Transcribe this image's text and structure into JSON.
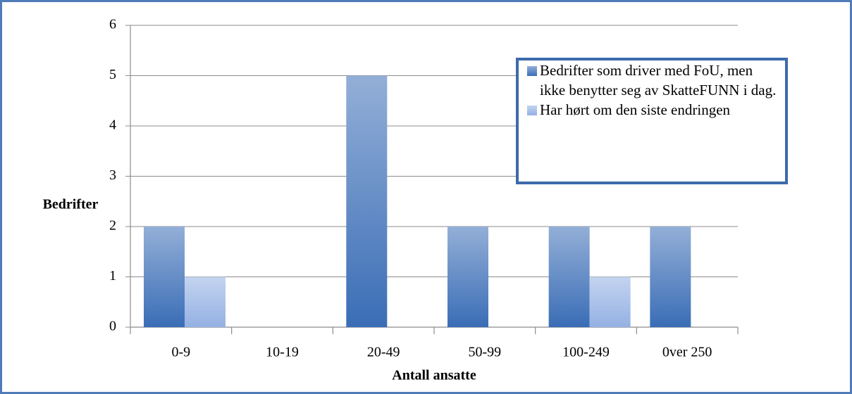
{
  "chart_data": {
    "type": "bar",
    "x_label": "Antall ansatte",
    "y_label": "Bedrifter",
    "categories": [
      "0-9",
      "10-19",
      "20-49",
      "50-99",
      "100-249",
      "0ver 250"
    ],
    "series": [
      {
        "name": "Bedrifter som driver med FoU, men ikke benytter seg av SkatteFUNN i dag.",
        "color": "#3a6db6",
        "values": [
          2,
          0,
          5,
          2,
          2,
          2
        ]
      },
      {
        "name": "Har hørt om den siste endringen",
        "color": "#94b1e3",
        "values": [
          1,
          0,
          0,
          0,
          1,
          0
        ]
      }
    ],
    "ylim": [
      0,
      6
    ],
    "yticks": [
      0,
      1,
      2,
      3,
      4,
      5,
      6
    ],
    "grid": true,
    "legend": "upper right"
  }
}
